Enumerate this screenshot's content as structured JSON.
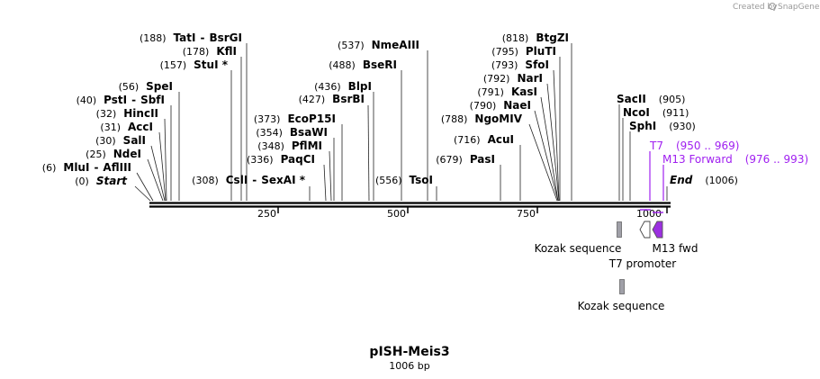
{
  "credit": {
    "text": "Created by",
    "brand": "SnapGene"
  },
  "plasmid": {
    "name": "pISH-Meis3",
    "length_label": "1006 bp",
    "length": 1006
  },
  "start_label": "Start",
  "start_pos": "(0)",
  "end_label": "End",
  "end_pos": "(1006)",
  "ticks": [
    "250",
    "500",
    "750",
    "1000"
  ],
  "enzymes_left": [
    {
      "pos": "(188)",
      "name": "TatI",
      "alt": "BsrGI"
    },
    {
      "pos": "(178)",
      "name": "KflI"
    },
    {
      "pos": "(157)",
      "name": "StuI *"
    },
    {
      "pos": "(56)",
      "name": "SpeI"
    },
    {
      "pos": "(40)",
      "name": "PstI",
      "alt": "SbfI"
    },
    {
      "pos": "(32)",
      "name": "HincII"
    },
    {
      "pos": "(31)",
      "name": "AccI"
    },
    {
      "pos": "(30)",
      "name": "SalI"
    },
    {
      "pos": "(25)",
      "name": "NdeI"
    },
    {
      "pos": "(6)",
      "name": "MluI",
      "alt": "AflIII"
    }
  ],
  "enzymes_mid": [
    {
      "pos": "(308)",
      "name": "CslI",
      "alt": "SexAI *"
    },
    {
      "pos": "(373)",
      "name": "EcoP15I"
    },
    {
      "pos": "(354)",
      "name": "BsaWI"
    },
    {
      "pos": "(348)",
      "name": "PflMI"
    },
    {
      "pos": "(336)",
      "name": "PaqCI"
    },
    {
      "pos": "(537)",
      "name": "NmeAIII"
    },
    {
      "pos": "(488)",
      "name": "BseRI"
    },
    {
      "pos": "(436)",
      "name": "BlpI"
    },
    {
      "pos": "(427)",
      "name": "BsrBI"
    },
    {
      "pos": "(556)",
      "name": "TsoI"
    }
  ],
  "enzymes_right": [
    {
      "pos": "(818)",
      "name": "BtgZI"
    },
    {
      "pos": "(795)",
      "name": "PluTI"
    },
    {
      "pos": "(793)",
      "name": "SfoI"
    },
    {
      "pos": "(792)",
      "name": "NarI"
    },
    {
      "pos": "(791)",
      "name": "KasI"
    },
    {
      "pos": "(790)",
      "name": "NaeI"
    },
    {
      "pos": "(788)",
      "name": "NgoMIV"
    },
    {
      "pos": "(716)",
      "name": "AcuI"
    },
    {
      "pos": "(679)",
      "name": "PasI"
    }
  ],
  "enzymes_far": [
    {
      "pos": "(905)",
      "name": "SacII"
    },
    {
      "pos": "(911)",
      "name": "NcoI"
    },
    {
      "pos": "(930)",
      "name": "SphI"
    }
  ],
  "primers": [
    {
      "name": "T7",
      "range": "(950 .. 969)",
      "color": "#a020f0"
    },
    {
      "name": "M13 Forward",
      "range": "(976 .. 993)",
      "color": "#a020f0"
    }
  ],
  "features": [
    {
      "name": "Kozak sequence",
      "color": "#a0a0a8"
    },
    {
      "name": "T7 promoter",
      "color": "#ffffff"
    },
    {
      "name": "M13 fwd",
      "color": "#9b30e0"
    },
    {
      "name": "Kozak sequence",
      "color": "#a0a0a8"
    }
  ]
}
